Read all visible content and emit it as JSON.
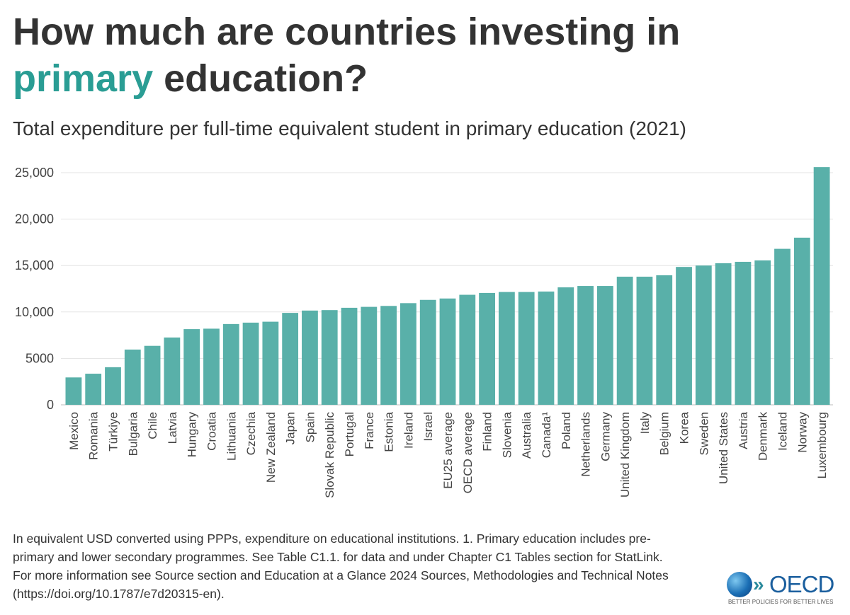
{
  "header": {
    "title_part1": "How much are countries investing in",
    "title_highlight": "primary",
    "title_part2": " education?",
    "subtitle": "Total expenditure per full-time equivalent student in primary education (2021)"
  },
  "chart_data": {
    "type": "bar",
    "title": "How much are countries investing in primary education?",
    "subtitle": "Total expenditure per full-time equivalent student in primary education (2021)",
    "xlabel": "",
    "ylabel": "",
    "ylim": [
      0,
      25000
    ],
    "yticks": [
      0,
      5000,
      10000,
      15000,
      20000,
      25000
    ],
    "ytick_labels": [
      "0",
      "5000",
      "10,000",
      "15,000",
      "20,000",
      "25,000"
    ],
    "grid": true,
    "bar_color": "#59b0a9",
    "categories": [
      "Mexico",
      "Romania",
      "Türkiye",
      "Bulgaria",
      "Chile",
      "Latvia",
      "Hungary",
      "Croatia",
      "Lithuania",
      "Czechia",
      "New Zealand",
      "Japan",
      "Spain",
      "Slovak Republic",
      "Portugal",
      "France",
      "Estonia",
      "Ireland",
      "Israel",
      "EU25 average",
      "OECD average",
      "Finland",
      "Slovenia",
      "Australia",
      "Canada¹",
      "Poland",
      "Netherlands",
      "Germany",
      "United Kingdom",
      "Italy",
      "Belgium",
      "Korea",
      "Sweden",
      "United States",
      "Austria",
      "Denmark",
      "Iceland",
      "Norway",
      "Luxembourg"
    ],
    "values": [
      2950,
      3350,
      4050,
      5950,
      6350,
      7250,
      8150,
      8200,
      8700,
      8850,
      8950,
      9900,
      10150,
      10200,
      10450,
      10550,
      10650,
      10950,
      11300,
      11450,
      11850,
      12050,
      12150,
      12150,
      12200,
      12650,
      12800,
      12800,
      13800,
      13800,
      13950,
      14850,
      15000,
      15250,
      15400,
      15550,
      16800,
      18000,
      25600
    ]
  },
  "footnote": {
    "line1": "In equivalent USD converted using PPPs, expenditure on educational institutions. 1. Primary education includes pre-",
    "line2": "primary and lower secondary programmes. See Table C1.1. for data and under Chapter C1 Tables section for StatLink.",
    "line3": "For more information see Source section and Education at a Glance 2024 Sources, Methodologies and Technical Notes",
    "line4": "(https://doi.org/10.1787/e7d20315-en)."
  },
  "logo": {
    "wordmark": "OECD",
    "tagline": "BETTER POLICIES FOR BETTER LIVES"
  }
}
